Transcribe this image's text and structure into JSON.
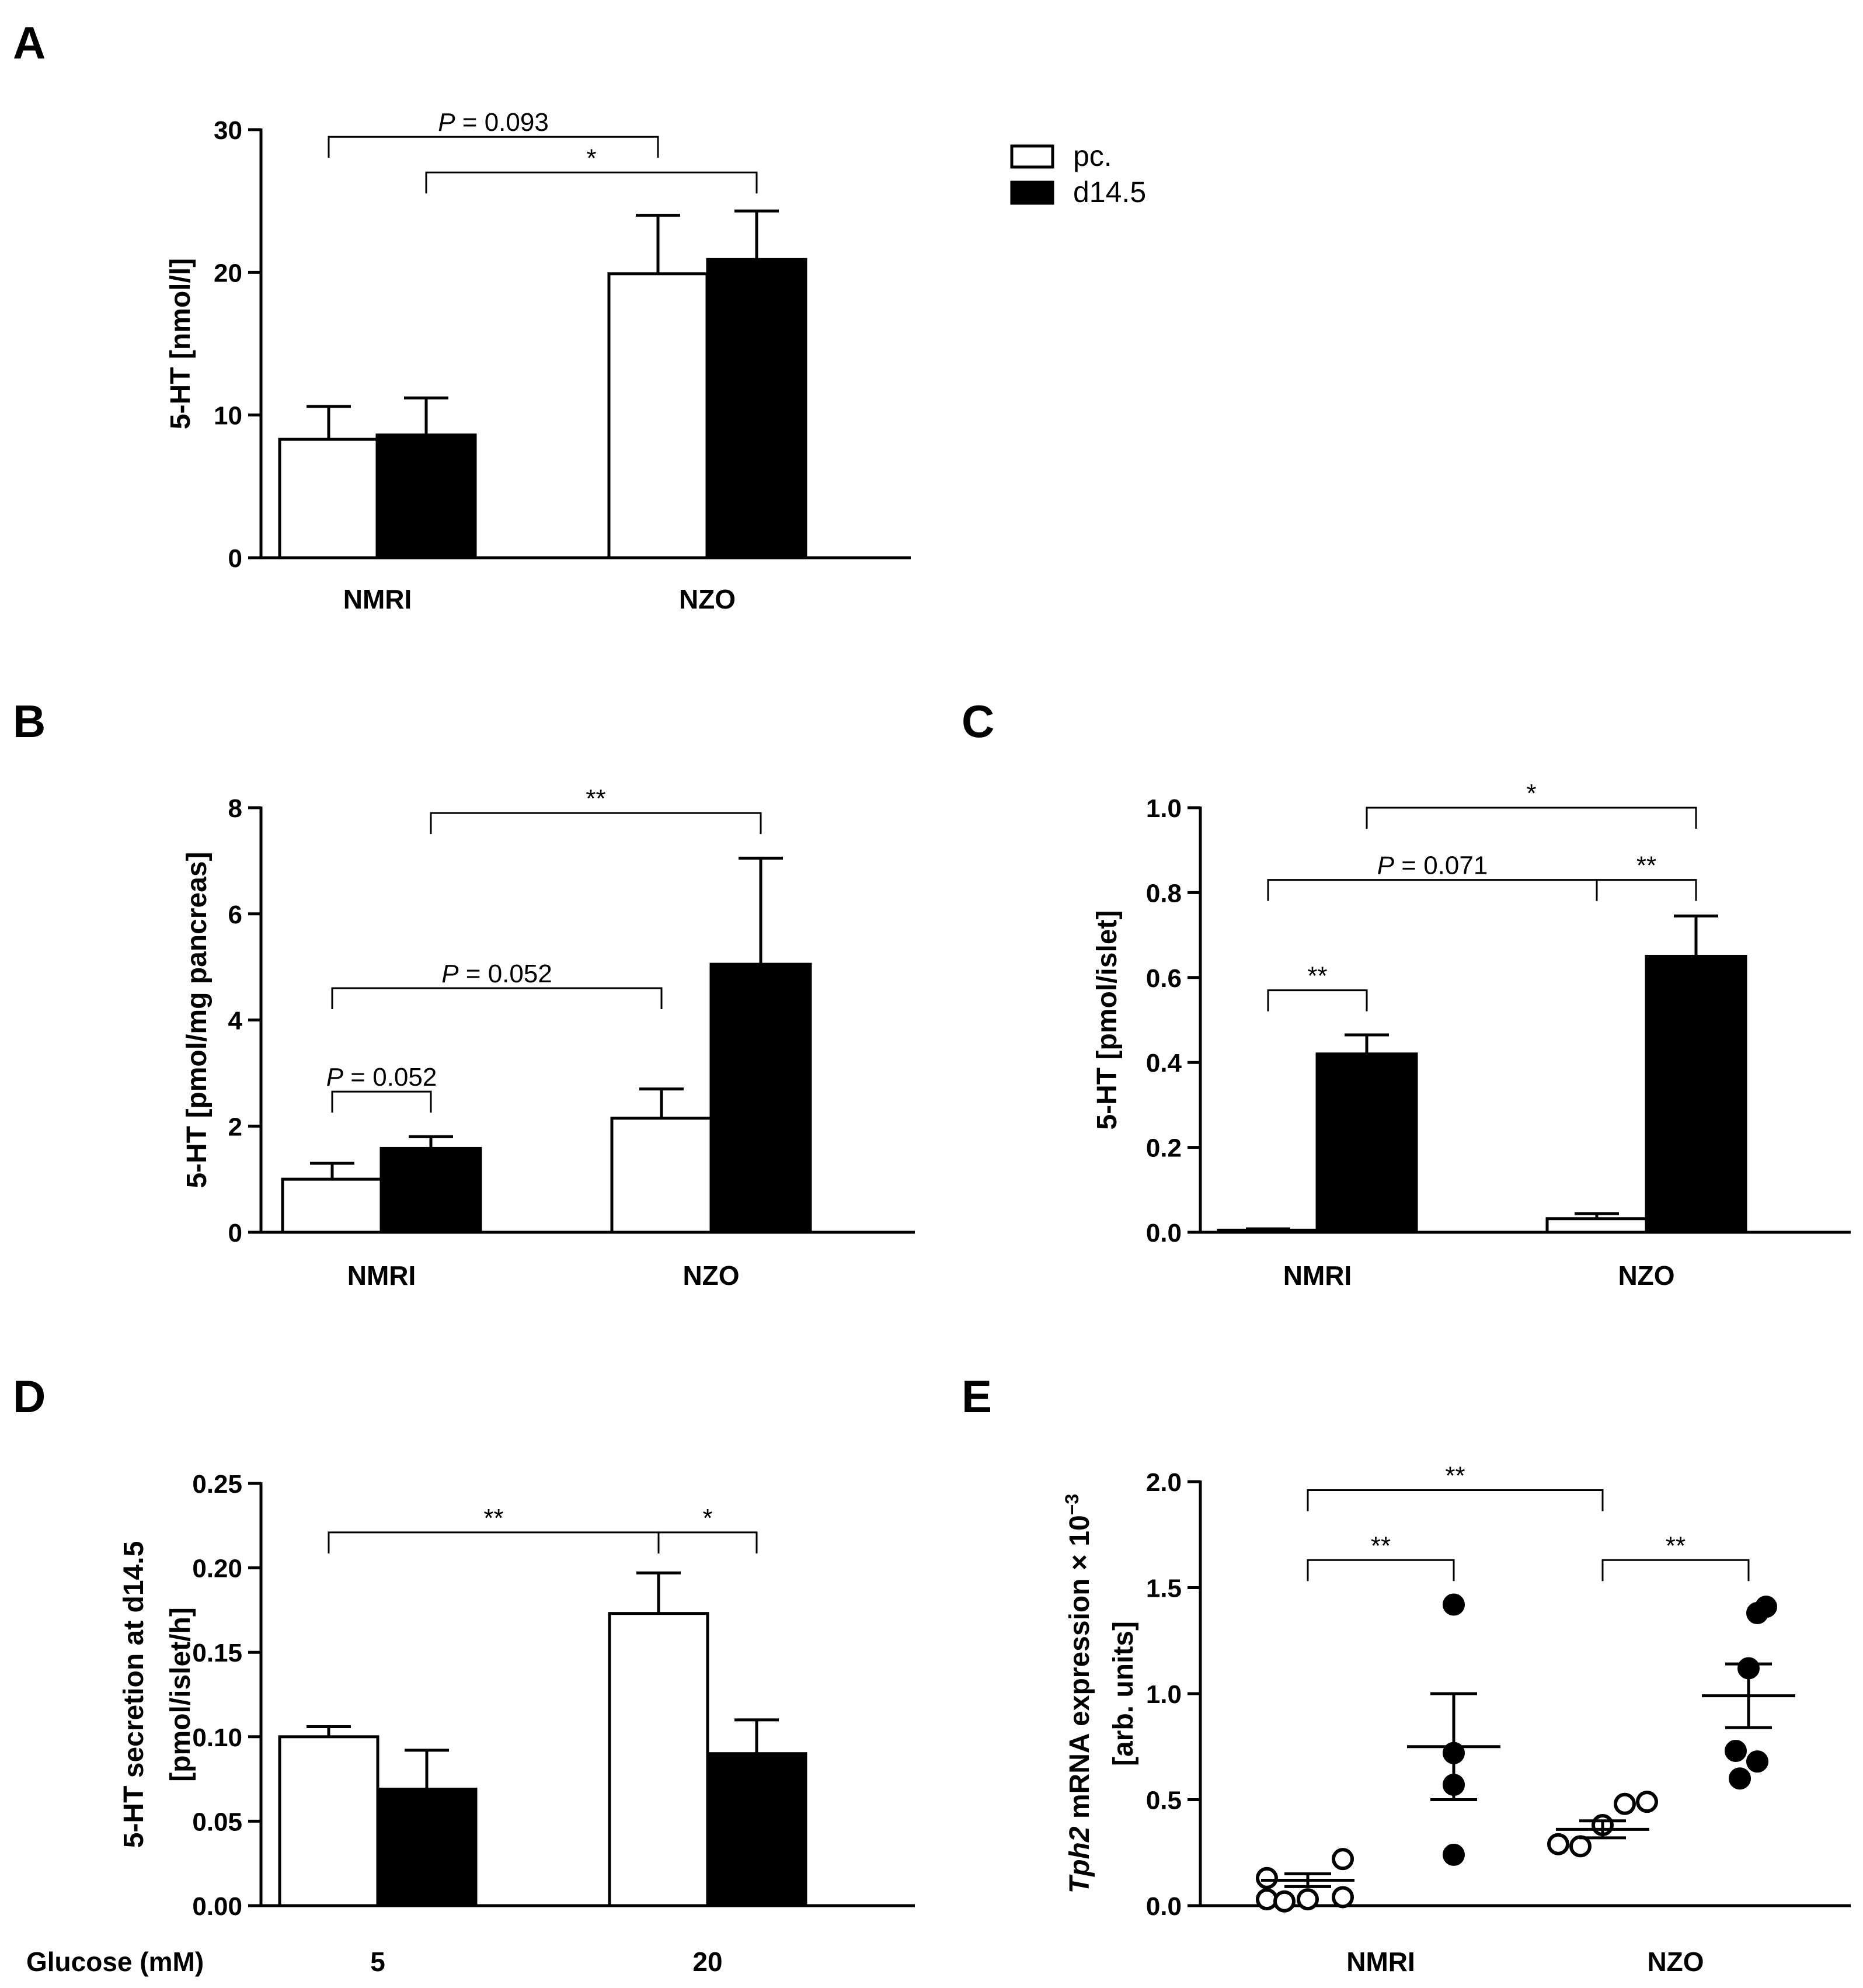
{
  "chart_data": [
    {
      "panel": "A",
      "type": "bar",
      "ylabel": "5-HT [nmol/l]",
      "ylim": [
        0,
        30
      ],
      "yticks": [
        "0",
        "10",
        "20",
        "30"
      ],
      "categories": [
        "NMRI",
        "NZO"
      ],
      "series": [
        {
          "name": "pc.",
          "values": [
            8.3,
            19.9
          ],
          "errors": [
            2.3,
            4.1
          ]
        },
        {
          "name": "d14.5",
          "values": [
            8.6,
            20.9
          ],
          "errors": [
            2.6,
            3.4
          ]
        }
      ],
      "legend": {
        "placement": "right",
        "entries": [
          "pc.",
          "d14.5"
        ]
      },
      "annotations": [
        {
          "italic": "P",
          "text": " = 0.093",
          "from": [
            0,
            0
          ],
          "to": [
            1,
            0
          ],
          "y": 29.5
        },
        {
          "text": "*",
          "from": [
            0,
            1
          ],
          "to": [
            1,
            1
          ],
          "y": 27
        }
      ]
    },
    {
      "panel": "B",
      "type": "bar",
      "ylabel": "5-HT [pmol/mg pancreas]",
      "ylim": [
        0,
        8
      ],
      "yticks": [
        "0",
        "2",
        "4",
        "6",
        "8"
      ],
      "categories": [
        "NMRI",
        "NZO"
      ],
      "series": [
        {
          "name": "pc.",
          "values": [
            1.0,
            2.15
          ],
          "errors": [
            0.3,
            0.55
          ]
        },
        {
          "name": "d14.5",
          "values": [
            1.58,
            5.05
          ],
          "errors": [
            0.22,
            2.0
          ]
        }
      ],
      "annotations": [
        {
          "text": "**",
          "from": [
            0,
            1
          ],
          "to": [
            1,
            1
          ],
          "y": 7.9
        },
        {
          "italic": "P",
          "text": " = 0.052",
          "from": [
            0,
            0
          ],
          "to": [
            1,
            0
          ],
          "y": 4.6
        },
        {
          "italic": "P",
          "text": " = 0.052",
          "from": [
            0,
            0
          ],
          "to": [
            0,
            1
          ],
          "y": 2.65
        }
      ]
    },
    {
      "panel": "C",
      "type": "bar",
      "ylabel": "5-HT [pmol/islet]",
      "ylim": [
        0,
        1.0
      ],
      "yticks": [
        "0.0",
        "0.2",
        "0.4",
        "0.6",
        "0.8",
        "1.0"
      ],
      "categories": [
        "NMRI",
        "NZO"
      ],
      "series": [
        {
          "name": "pc.",
          "values": [
            0.005,
            0.032
          ],
          "errors": [
            0.003,
            0.012
          ]
        },
        {
          "name": "d14.5",
          "values": [
            0.42,
            0.65
          ],
          "errors": [
            0.045,
            0.095
          ]
        }
      ],
      "annotations": [
        {
          "text": "*",
          "from": [
            0,
            1
          ],
          "to": [
            1,
            1
          ],
          "y": 1.0
        },
        {
          "italic": "P",
          "text": " = 0.071",
          "from": [
            0,
            0
          ],
          "to": [
            1,
            0
          ],
          "y": 0.83
        },
        {
          "text": "**",
          "from": [
            1,
            0
          ],
          "to": [
            1,
            1
          ],
          "y": 0.83
        },
        {
          "text": "**",
          "from": [
            0,
            0
          ],
          "to": [
            0,
            1
          ],
          "y": 0.57
        }
      ]
    },
    {
      "panel": "D",
      "type": "bar",
      "ylabel_lines": [
        "5-HT secretion at d14.5",
        "[pmol/islet/h]"
      ],
      "ylim": [
        0,
        0.25
      ],
      "yticks": [
        "0.00",
        "0.05",
        "0.10",
        "0.15",
        "0.20",
        "0.25"
      ],
      "xlabel": "Glucose (mM)",
      "categories": [
        "5",
        "20"
      ],
      "series": [
        {
          "name": "pc.",
          "values": [
            0.1,
            0.173
          ],
          "errors": [
            0.006,
            0.024
          ]
        },
        {
          "name": "d14.5",
          "values": [
            0.069,
            0.09
          ],
          "errors": [
            0.023,
            0.02
          ]
        }
      ],
      "annotations": [
        {
          "text": "**",
          "from": [
            0,
            0
          ],
          "to": [
            1,
            0
          ],
          "y": 0.221
        },
        {
          "text": "*",
          "from": [
            1,
            0
          ],
          "to": [
            1,
            1
          ],
          "y": 0.221
        }
      ]
    },
    {
      "panel": "E",
      "type": "scatter",
      "ylabel_italic": "Tph2",
      "ylabel_rest": " mRNA expression × 10",
      "ylabel_sup": "−3",
      "ylabel_line2": "[arb. units]",
      "ylim": [
        0,
        2.0
      ],
      "yticks": [
        "0.0",
        "0.5",
        "1.0",
        "1.5",
        "2.0"
      ],
      "categories": [
        "NMRI",
        "NZO"
      ],
      "groups": [
        {
          "name": "NMRI pc.",
          "filled": false,
          "mean": 0.12,
          "sem": 0.03,
          "values": [
            0.03,
            0.02,
            0.03,
            0.13,
            0.22,
            0.04
          ]
        },
        {
          "name": "NMRI d14.5",
          "filled": true,
          "mean": 0.75,
          "sem": 0.25,
          "values": [
            0.24,
            0.57,
            1.42,
            0.72
          ]
        },
        {
          "name": "NZO pc.",
          "filled": false,
          "mean": 0.36,
          "sem": 0.04,
          "values": [
            0.29,
            0.28,
            0.38,
            0.48,
            0.49
          ]
        },
        {
          "name": "NZO d14.5",
          "filled": true,
          "mean": 0.99,
          "sem": 0.15,
          "values": [
            0.6,
            0.73,
            1.12,
            1.38,
            1.41,
            0.68
          ]
        }
      ],
      "annotations": [
        {
          "text": "**",
          "from": [
            0,
            0
          ],
          "to": [
            1,
            0
          ],
          "y": 1.96
        },
        {
          "text": "**",
          "from": [
            0,
            0
          ],
          "to": [
            0,
            1
          ],
          "y": 1.63
        },
        {
          "text": "**",
          "from": [
            1,
            0
          ],
          "to": [
            1,
            1
          ],
          "y": 1.63
        }
      ]
    }
  ]
}
